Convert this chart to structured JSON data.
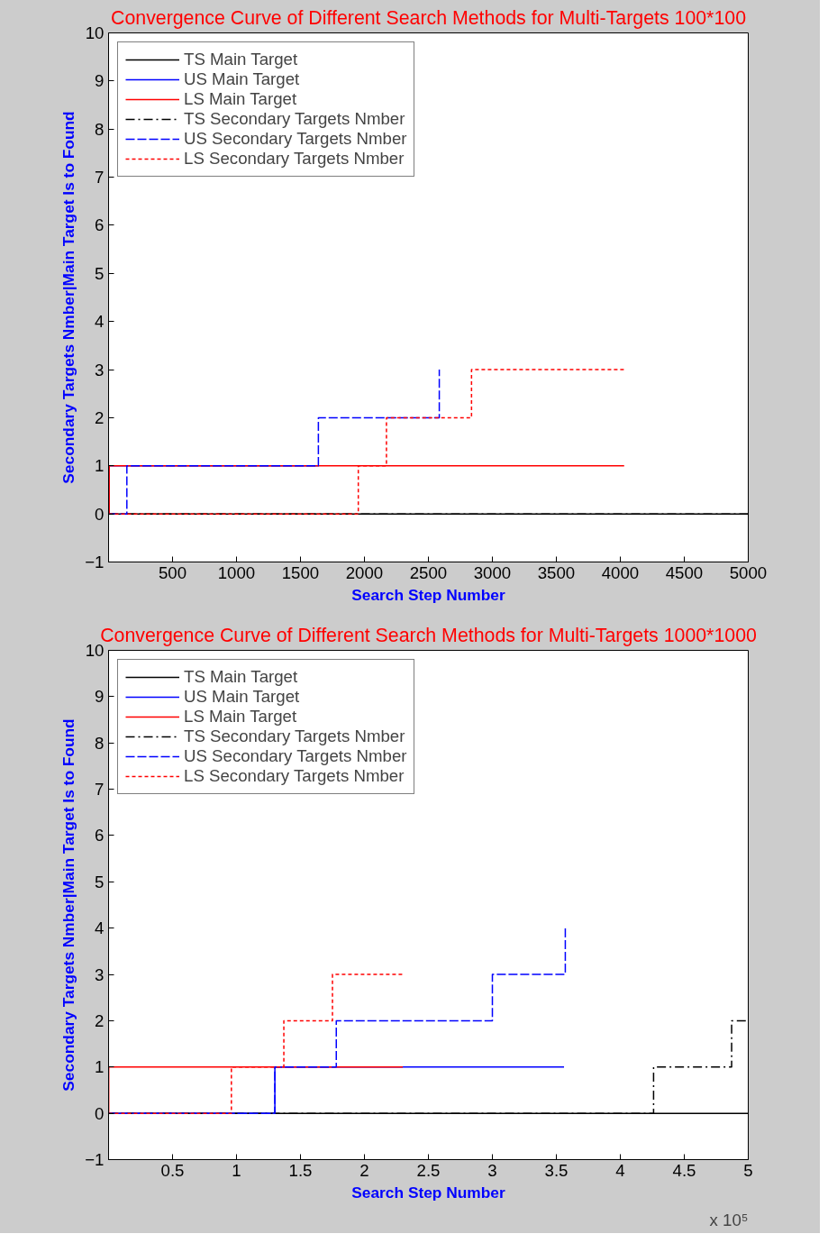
{
  "chart_data": [
    {
      "type": "step",
      "title": "Convergence Curve of Different Search Methods for Multi-Targets 100*100",
      "xlabel": "Search Step Number",
      "ylabel": "Secondary Targets Nmber|Main Target Is to Found",
      "xlim": [
        0,
        5000
      ],
      "xticks": [
        500,
        1000,
        1500,
        2000,
        2500,
        3000,
        3500,
        4000,
        4500,
        5000
      ],
      "ylim": [
        -1,
        10
      ],
      "yticks": [
        -1,
        0,
        1,
        2,
        3,
        4,
        5,
        6,
        7,
        8,
        9,
        10
      ],
      "grid": false,
      "legend": "top left",
      "marker": "none",
      "series": [
        {
          "name": "TS Main Target",
          "color": "#000000",
          "line_style": "solid",
          "x": [
            0,
            5000
          ],
          "values": [
            0,
            0
          ]
        },
        {
          "name": "US Main Target",
          "color": "#0000ff",
          "line_style": "solid",
          "x": [
            0,
            5,
            1640
          ],
          "values": [
            0,
            1,
            1
          ]
        },
        {
          "name": "LS Main Target",
          "color": "#ff0000",
          "line_style": "solid",
          "x": [
            0,
            5,
            4030
          ],
          "values": [
            0,
            1,
            1
          ]
        },
        {
          "name": "TS Secondary Targets Nmber",
          "color": "#000000",
          "line_style": "dashdot",
          "x": [
            0,
            5000
          ],
          "values": [
            0,
            0
          ]
        },
        {
          "name": "US Secondary Targets Nmber",
          "color": "#0000ff",
          "line_style": "dashed",
          "x": [
            0,
            143,
            1640,
            2585
          ],
          "values": [
            0,
            1,
            2,
            3
          ]
        },
        {
          "name": "LS Secondary Targets Nmber",
          "color": "#ff0000",
          "line_style": "dotted",
          "x": [
            0,
            1952,
            2172,
            2837,
            4030
          ],
          "values": [
            0,
            1,
            2,
            3,
            3
          ]
        }
      ]
    },
    {
      "type": "step",
      "title": "Convergence Curve of Different Search Methods for Multi-Targets 1000*1000",
      "xlabel": "Search Step Number",
      "ylabel": "Secondary Targets Nmber|Main Target Is to Found",
      "annotations": [
        "x 10⁵"
      ],
      "xlim": [
        0,
        5
      ],
      "xticks": [
        0.5,
        1,
        1.5,
        2,
        2.5,
        3,
        3.5,
        4,
        4.5,
        5
      ],
      "ylim": [
        -1,
        10
      ],
      "yticks": [
        -1,
        0,
        1,
        2,
        3,
        4,
        5,
        6,
        7,
        8,
        9,
        10
      ],
      "grid": false,
      "legend": "top left",
      "marker": "none",
      "series": [
        {
          "name": "TS Main Target",
          "color": "#000000",
          "line_style": "solid",
          "x": [
            0,
            5
          ],
          "values": [
            0,
            0
          ]
        },
        {
          "name": "US Main Target",
          "color": "#0000ff",
          "line_style": "solid",
          "x": [
            0,
            1.3,
            3.56
          ],
          "values": [
            0,
            1,
            1
          ]
        },
        {
          "name": "LS Main Target",
          "color": "#ff0000",
          "line_style": "solid",
          "x": [
            0,
            0.001,
            2.3
          ],
          "values": [
            0,
            1,
            1
          ]
        },
        {
          "name": "TS Secondary Targets Nmber",
          "color": "#000000",
          "line_style": "dashdot",
          "x": [
            0,
            4.26,
            4.87,
            5
          ],
          "values": [
            0,
            1,
            2,
            2
          ]
        },
        {
          "name": "US Secondary Targets Nmber",
          "color": "#0000ff",
          "line_style": "dashed",
          "x": [
            0,
            1.3,
            1.78,
            3.0,
            3.57
          ],
          "values": [
            0,
            1,
            2,
            3,
            4
          ]
        },
        {
          "name": "LS Secondary Targets Nmber",
          "color": "#ff0000",
          "line_style": "dotted",
          "x": [
            0,
            0.96,
            1.37,
            1.75,
            2.3
          ],
          "values": [
            0,
            1,
            2,
            3,
            3
          ]
        }
      ]
    }
  ]
}
